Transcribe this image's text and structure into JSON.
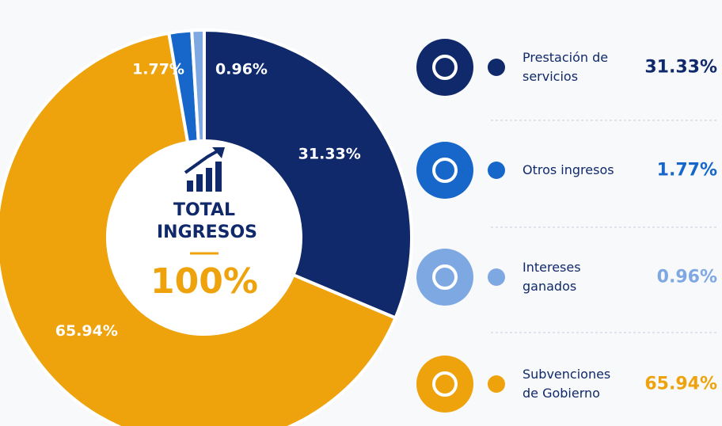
{
  "chart_data": {
    "type": "donut",
    "center_title": "TOTAL INGRESOS",
    "center_value": "100%",
    "categories": [
      "Prestación de servicios",
      "Subvenciones de Gobierno",
      "Otros ingresos",
      "Intereses ganados"
    ],
    "values": [
      31.33,
      65.94,
      1.77,
      0.96
    ],
    "value_labels": [
      "31.33%",
      "65.94%",
      "1.77%",
      "0.96%"
    ],
    "colors": [
      "#10296b",
      "#eea20c",
      "#1667c9",
      "#7ea8e2"
    ]
  }
}
